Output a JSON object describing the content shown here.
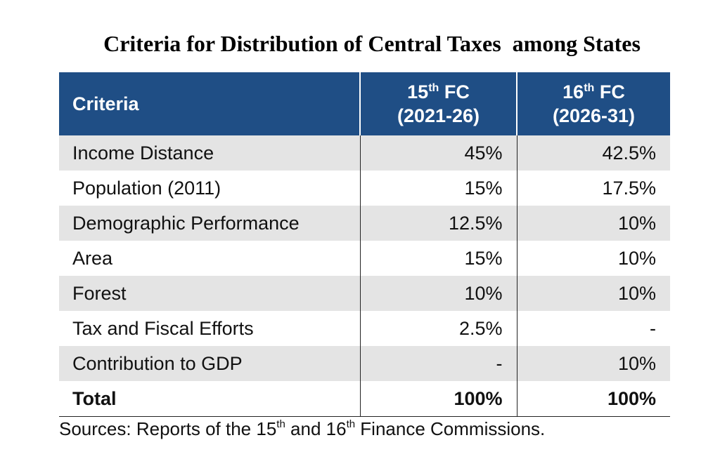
{
  "title": "Criteria for Distribution of Central Taxes  among States",
  "table": {
    "header": [
      {
        "text": "Criteria"
      },
      {
        "number": "15",
        "sup": "th",
        "text": "FC",
        "period": "(2021-26)"
      },
      {
        "number": "16",
        "sup": "th",
        "text": "FC",
        "period": "(2026-31)"
      }
    ],
    "rows": [
      [
        "Income Distance",
        "45%",
        "42.5%"
      ],
      [
        "Population (2011)",
        "15%",
        "17.5%"
      ],
      [
        "Demographic Performance",
        "12.5%",
        "10%"
      ],
      [
        "Area",
        "15%",
        "10%"
      ],
      [
        "Forest",
        "10%",
        "10%"
      ],
      [
        "Tax and Fiscal Efforts",
        "2.5%",
        "-"
      ],
      [
        "Contribution to GDP",
        "-",
        "10%"
      ]
    ],
    "total": [
      "Total",
      "100%",
      "100%"
    ]
  },
  "source": [
    "Sources: Reports of the 15",
    "th",
    " and 16",
    "th",
    " Finance Commissions."
  ]
}
